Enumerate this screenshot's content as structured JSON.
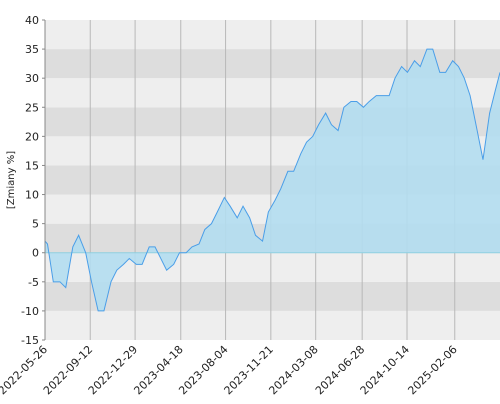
{
  "chart_data": {
    "type": "area",
    "y_label": "[Zmiany %]",
    "x": [
      "2022-05-26",
      "2022-06-01",
      "2022-06-15",
      "2022-07-01",
      "2022-07-15",
      "2022-08-01",
      "2022-08-15",
      "2022-09-01",
      "2022-09-15",
      "2022-10-01",
      "2022-10-15",
      "2022-11-01",
      "2022-11-15",
      "2022-12-01",
      "2022-12-15",
      "2023-01-01",
      "2023-01-15",
      "2023-02-01",
      "2023-02-15",
      "2023-03-01",
      "2023-03-15",
      "2023-04-01",
      "2023-04-15",
      "2023-05-01",
      "2023-05-15",
      "2023-06-01",
      "2023-06-15",
      "2023-07-01",
      "2023-07-15",
      "2023-08-01",
      "2023-08-15",
      "2023-09-01",
      "2023-09-15",
      "2023-10-01",
      "2023-10-15",
      "2023-11-01",
      "2023-11-15",
      "2023-12-01",
      "2023-12-15",
      "2024-01-01",
      "2024-01-15",
      "2024-02-01",
      "2024-02-15",
      "2024-03-01",
      "2024-03-15",
      "2024-04-01",
      "2024-04-15",
      "2024-05-01",
      "2024-05-15",
      "2024-06-01",
      "2024-06-15",
      "2024-07-01",
      "2024-07-15",
      "2024-08-01",
      "2024-08-15",
      "2024-09-01",
      "2024-09-15",
      "2024-10-01",
      "2024-10-15",
      "2024-11-01",
      "2024-11-15",
      "2024-12-01",
      "2024-12-15",
      "2025-01-01",
      "2025-01-15",
      "2025-02-01",
      "2025-02-15",
      "2025-03-01",
      "2025-03-15",
      "2025-04-01",
      "2025-04-15",
      "2025-05-01",
      "2025-05-15",
      "2025-05-26"
    ],
    "values": [
      2,
      1.5,
      -5,
      -5,
      -6,
      1,
      3,
      0,
      -5,
      -10,
      -10,
      -5,
      -3,
      -2,
      -1,
      -2,
      -2,
      1,
      1,
      -1,
      -3,
      -2,
      0,
      0,
      1,
      1.5,
      4,
      5,
      7,
      9.5,
      8,
      6,
      8,
      6,
      3,
      2,
      7,
      9,
      11,
      14,
      14,
      17,
      19,
      20,
      22,
      24,
      22,
      21,
      25,
      26,
      26,
      25,
      26,
      27,
      27,
      27,
      30,
      32,
      31,
      33,
      32,
      35,
      35,
      31,
      31,
      33,
      32,
      30,
      27,
      21,
      16,
      24,
      28,
      31
    ],
    "color": "#4a9ee8",
    "fill": "#b3ddef",
    "xlim": [
      "2022-05-26",
      "2025-05-26"
    ],
    "xticks": [
      "2022-05-26",
      "2022-09-12",
      "2022-12-29",
      "2023-04-18",
      "2023-08-04",
      "2023-11-21",
      "2024-03-08",
      "2024-06-28",
      "2024-10-14",
      "2025-02-06"
    ],
    "ylim": [
      -15,
      40
    ],
    "yticks": [
      -15,
      -10,
      -5,
      0,
      5,
      10,
      15,
      20,
      25,
      30,
      35,
      40
    ],
    "bands": [
      "#eeeeee",
      "#dddddd"
    ],
    "grid_color": "#b8b8b8"
  }
}
